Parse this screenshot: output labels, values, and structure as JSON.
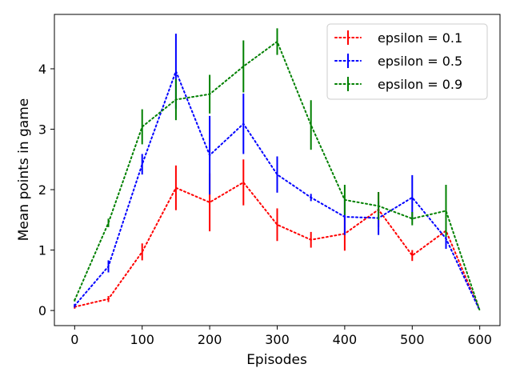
{
  "chart_data": {
    "type": "line",
    "title": "",
    "xlabel": "Episodes",
    "ylabel": "Mean points in game",
    "xlim": [
      -30,
      630
    ],
    "ylim": [
      -0.25,
      4.9
    ],
    "xticks": [
      0,
      100,
      200,
      300,
      400,
      500,
      600
    ],
    "yticks": [
      0,
      1,
      2,
      3,
      4
    ],
    "grid": false,
    "legend_position": "top-right",
    "x": [
      0,
      50,
      100,
      150,
      200,
      250,
      300,
      350,
      400,
      450,
      500,
      550,
      600
    ],
    "series": [
      {
        "name": "epsilon = 0.1",
        "color": "#ff0000",
        "values": [
          0.06,
          0.19,
          0.97,
          2.03,
          1.79,
          2.12,
          1.42,
          1.17,
          1.27,
          1.67,
          0.91,
          1.32,
          0.0
        ],
        "errors": [
          0.03,
          0.05,
          0.14,
          0.37,
          0.48,
          0.38,
          0.27,
          0.13,
          0.28,
          0.29,
          0.09,
          0.06,
          0.0
        ]
      },
      {
        "name": "epsilon = 0.5",
        "color": "#0000ff",
        "values": [
          0.08,
          0.73,
          2.42,
          3.96,
          2.57,
          3.09,
          2.25,
          1.87,
          1.55,
          1.53,
          1.87,
          1.19,
          0.0
        ],
        "errors": [
          0.03,
          0.1,
          0.17,
          0.62,
          0.65,
          0.5,
          0.3,
          0.06,
          0.3,
          0.28,
          0.37,
          0.17,
          0.0
        ]
      },
      {
        "name": "epsilon = 0.9",
        "color": "#008000",
        "values": [
          0.17,
          1.45,
          3.04,
          3.49,
          3.58,
          4.04,
          4.45,
          3.07,
          1.83,
          1.73,
          1.52,
          1.65,
          0.0
        ],
        "errors": [
          0.02,
          0.07,
          0.29,
          0.34,
          0.32,
          0.43,
          0.22,
          0.41,
          0.25,
          0.23,
          0.11,
          0.43,
          0.0
        ]
      }
    ]
  }
}
